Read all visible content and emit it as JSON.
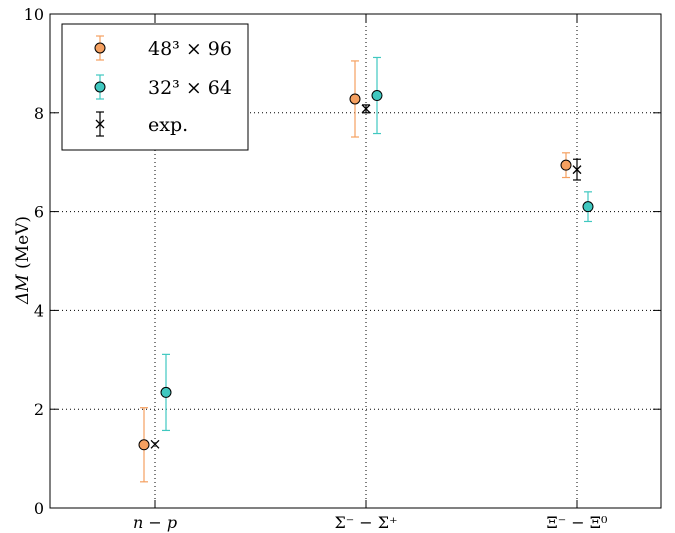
{
  "chart_data": {
    "type": "scatter",
    "ylabel_parts": [
      "ΔM",
      " (MeV)"
    ],
    "ylim": [
      0,
      10
    ],
    "yticks": [
      "0",
      "2",
      "4",
      "6",
      "8",
      "10"
    ],
    "categories": [
      "n − p",
      "Σ⁻ − Σ⁺",
      "Ξ⁻ − Ξ⁰"
    ],
    "grid": true,
    "legend_position": "top-left",
    "series": [
      {
        "name": "48³ × 96",
        "color": "#f5a060",
        "marker": "circle",
        "points": [
          {
            "category": "n − p",
            "y": 1.28,
            "err": 0.75
          },
          {
            "category": "Σ⁻ − Σ⁺",
            "y": 8.28,
            "err": 0.77
          },
          {
            "category": "Ξ⁻ − Ξ⁰",
            "y": 6.94,
            "err": 0.25
          }
        ]
      },
      {
        "name": "32³ × 64",
        "color": "#40c8c0",
        "marker": "circle",
        "points": [
          {
            "category": "n − p",
            "y": 2.34,
            "err": 0.77
          },
          {
            "category": "Σ⁻ − Σ⁺",
            "y": 8.35,
            "err": 0.77
          },
          {
            "category": "Ξ⁻ − Ξ⁰",
            "y": 6.1,
            "err": 0.3
          }
        ]
      },
      {
        "name": "exp.",
        "color": "#000000",
        "marker": "x",
        "points": [
          {
            "category": "n − p",
            "y": 1.29,
            "err": 0.0
          },
          {
            "category": "Σ⁻ − Σ⁺",
            "y": 8.08,
            "err": 0.08
          },
          {
            "category": "Ξ⁻ − Ξ⁰",
            "y": 6.85,
            "err": 0.21
          }
        ]
      }
    ]
  }
}
